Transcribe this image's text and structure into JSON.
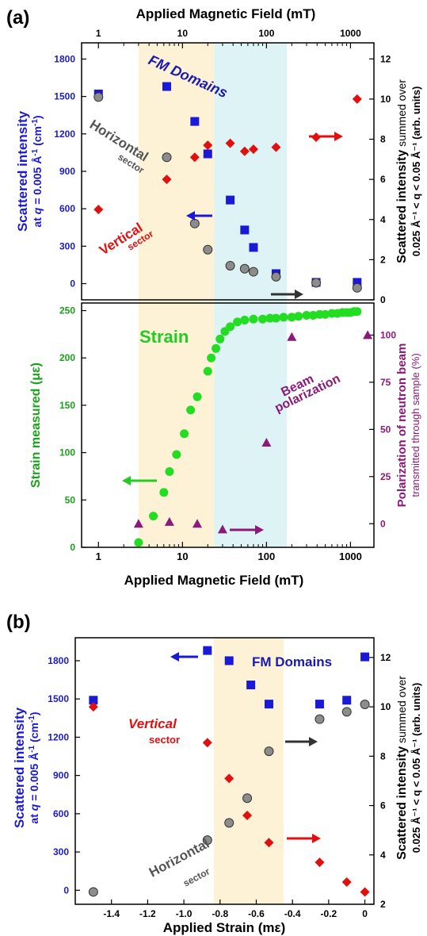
{
  "colors": {
    "blue": "#1a1ad6",
    "red": "#e01010",
    "gray": "#8c8c8c",
    "green": "#22dd22",
    "purple": "#8b1a7a",
    "black": "#111111",
    "band_tan": "#fdf1d6",
    "band_cyan": "#ddf3f5",
    "navy": "#1a1ab0",
    "axis_blue": "#1a1ad6"
  },
  "panel_a": {
    "label": "(a)",
    "top_axis_label": "Applied Magnetic Field (mT)",
    "top_ticks": [
      "1",
      "10",
      "100",
      "1000"
    ],
    "left_label_line1": "Scattered intensity",
    "left_label_line2_pre": "at ",
    "left_label_line2_q": "q",
    "left_label_line2_post": " = 0.005 Å",
    "left_label_sup": "-1",
    "left_label_unit": " (cm",
    "left_label_unit_sup": "-1",
    "left_label_unit_close": ")",
    "right_label_line1_bold": "Scattered intensity",
    "right_label_line1_rest": " summed over",
    "right_label_line2": "0.025 Å⁻¹ < q < 0.05 Å⁻¹  (arb. units)",
    "upper_left_ticks": [
      "0",
      "300",
      "600",
      "900",
      "1200",
      "1500",
      "1800"
    ],
    "upper_right_ticks": [
      "0",
      "2",
      "4",
      "6",
      "8",
      "10",
      "12"
    ],
    "fm_label": "FM Domains",
    "horizontal_label": "Horizontal",
    "horizontal_sub": "sector",
    "vertical_label": "Vertical",
    "vertical_sub": "sector",
    "lower_left_label": "Strain measured (με)",
    "lower_left_ticks": [
      "0",
      "50",
      "100",
      "150",
      "200",
      "250"
    ],
    "lower_right_ticks": [
      "0",
      "25",
      "50",
      "75",
      "100"
    ],
    "lower_right_label_line1": "Polarization of neutron beam",
    "lower_right_label_line2": "transmitted through sample (%)",
    "strain_label": "Strain",
    "beam_label_line1": "Beam",
    "beam_label_line2": "polarization",
    "bottom_axis_label": "Applied Magnetic Field (mT)",
    "bottom_ticks": [
      "1",
      "10",
      "100",
      "1000"
    ]
  },
  "panel_b": {
    "label": "(b)",
    "left_ticks": [
      "0",
      "300",
      "600",
      "900",
      "1200",
      "1500",
      "1800"
    ],
    "right_ticks": [
      "2",
      "4",
      "6",
      "8",
      "10",
      "12"
    ],
    "x_ticks": [
      "-1.4",
      "-1.2",
      "-1.0",
      "-0.8",
      "-0.6",
      "-0.4",
      "-0.2",
      "0"
    ],
    "x_axis_label": "Applied Strain (mε)",
    "fm_label": "FM Domains",
    "vertical_label": "Vertical",
    "vertical_sub": "sector",
    "horizontal_label": "Horizontal",
    "horizontal_sub": "sector"
  },
  "chart_data": [
    {
      "type": "scatter",
      "panel": "a-upper",
      "title": "",
      "xlabel": "Applied Magnetic Field (mT)",
      "xscale": "log",
      "xlim": [
        0.63,
        1900
      ],
      "ylabel": "Scattered intensity at q = 0.005 Å-1 (cm-1)",
      "ylim": [
        -130,
        1930
      ],
      "y2label": "Scattered intensity summed over 0.025 Å-1 < q < 0.05 Å-1 (arb. units)",
      "y2lim": [
        0,
        12.8
      ],
      "bands": [
        {
          "x": [
            3,
            24
          ],
          "color": "band_tan"
        },
        {
          "x": [
            24,
            175
          ],
          "color": "band_cyan"
        }
      ],
      "series": [
        {
          "name": "FM Domains",
          "axis": "left",
          "marker": "square",
          "color": "blue",
          "x": [
            1,
            6.5,
            14,
            20,
            37,
            55,
            70,
            130,
            390,
            1200
          ],
          "y": [
            1520,
            1580,
            1300,
            1040,
            670,
            430,
            290,
            80,
            10,
            10
          ]
        },
        {
          "name": "Horizontal sector",
          "axis": "right",
          "marker": "circle",
          "color": "gray",
          "x": [
            1,
            6.5,
            14,
            20,
            37,
            55,
            70,
            130,
            390,
            1200
          ],
          "y": [
            10.1,
            7.1,
            3.8,
            2.5,
            1.7,
            1.55,
            1.4,
            1.15,
            0.85,
            0.6
          ]
        },
        {
          "name": "Vertical sector",
          "axis": "right",
          "marker": "diamond",
          "color": "red",
          "x": [
            1,
            6.5,
            14,
            20,
            37,
            55,
            70,
            130,
            390,
            1200
          ],
          "y": [
            4.5,
            6.0,
            7.1,
            7.7,
            7.8,
            7.4,
            7.5,
            7.6,
            8.1,
            10.0
          ]
        }
      ]
    },
    {
      "type": "scatter",
      "panel": "a-lower",
      "title": "",
      "xlabel": "Applied Magnetic Field (mT)",
      "xscale": "log",
      "xlim": [
        0.63,
        1900
      ],
      "ylabel": "Strain measured (με)",
      "ylim": [
        0,
        258
      ],
      "y2label": "Polarization of neutron beam transmitted through sample (%)",
      "y2lim": [
        -12.5,
        117
      ],
      "series": [
        {
          "name": "Strain",
          "axis": "left",
          "marker": "circle",
          "color": "green",
          "x": [
            3,
            4.5,
            6,
            7,
            8.5,
            10.5,
            12.5,
            15,
            20,
            22,
            25,
            28,
            32,
            37,
            45,
            55,
            70,
            90,
            110,
            130,
            160,
            200,
            240,
            300,
            360,
            430,
            500,
            600,
            700,
            800,
            900,
            1000,
            1100,
            1200
          ],
          "y": [
            5,
            33,
            58,
            80,
            98,
            120,
            145,
            159,
            186,
            200,
            210,
            220,
            228,
            233,
            238,
            240,
            241,
            241,
            242,
            242,
            243,
            243,
            244,
            245,
            245,
            246,
            246,
            247,
            247,
            248,
            248,
            248,
            249,
            249
          ]
        },
        {
          "name": "Beam polarization",
          "axis": "right",
          "marker": "triangle",
          "color": "purple",
          "x": [
            3,
            7,
            15,
            30,
            100,
            200,
            1600
          ],
          "y": [
            0,
            1,
            0,
            -3,
            43,
            99,
            100
          ]
        }
      ]
    },
    {
      "type": "scatter",
      "panel": "b",
      "title": "",
      "xlabel": "Applied Strain (mε)",
      "xlim": [
        -1.6,
        0.05
      ],
      "ylabel": "Scattered intensity at q = 0.005 Å-1 (cm-1)",
      "ylim": [
        -110,
        1980
      ],
      "y2label": "Scattered intensity summed over 0.025 Å-1 < q < 0.05 Å-1 (arb. units)",
      "y2lim": [
        2,
        12.8
      ],
      "bands": [
        {
          "x": [
            -0.83,
            -0.43
          ],
          "color": "band_tan"
        }
      ],
      "series": [
        {
          "name": "FM Domains",
          "axis": "left",
          "marker": "square",
          "color": "blue",
          "x": [
            -1.5,
            -0.87,
            -0.75,
            -0.63,
            -0.53,
            -0.25,
            -0.1,
            0
          ],
          "y": [
            1490,
            1880,
            1800,
            1610,
            1460,
            1460,
            1490,
            1830
          ]
        },
        {
          "name": "Vertical sector",
          "axis": "right",
          "marker": "diamond",
          "color": "red",
          "x": [
            -1.5,
            -0.87,
            -0.75,
            -0.65,
            -0.53,
            -0.25,
            -0.1,
            0
          ],
          "y": [
            10.0,
            8.55,
            7.1,
            5.6,
            4.5,
            3.7,
            2.9,
            2.5
          ]
        },
        {
          "name": "Horizontal sector",
          "axis": "right",
          "marker": "circle",
          "color": "gray",
          "x": [
            -1.5,
            -0.87,
            -0.75,
            -0.65,
            -0.53,
            -0.25,
            -0.1,
            0
          ],
          "y": [
            2.5,
            4.6,
            5.3,
            6.3,
            8.2,
            9.5,
            9.8,
            10.1
          ]
        }
      ]
    }
  ]
}
